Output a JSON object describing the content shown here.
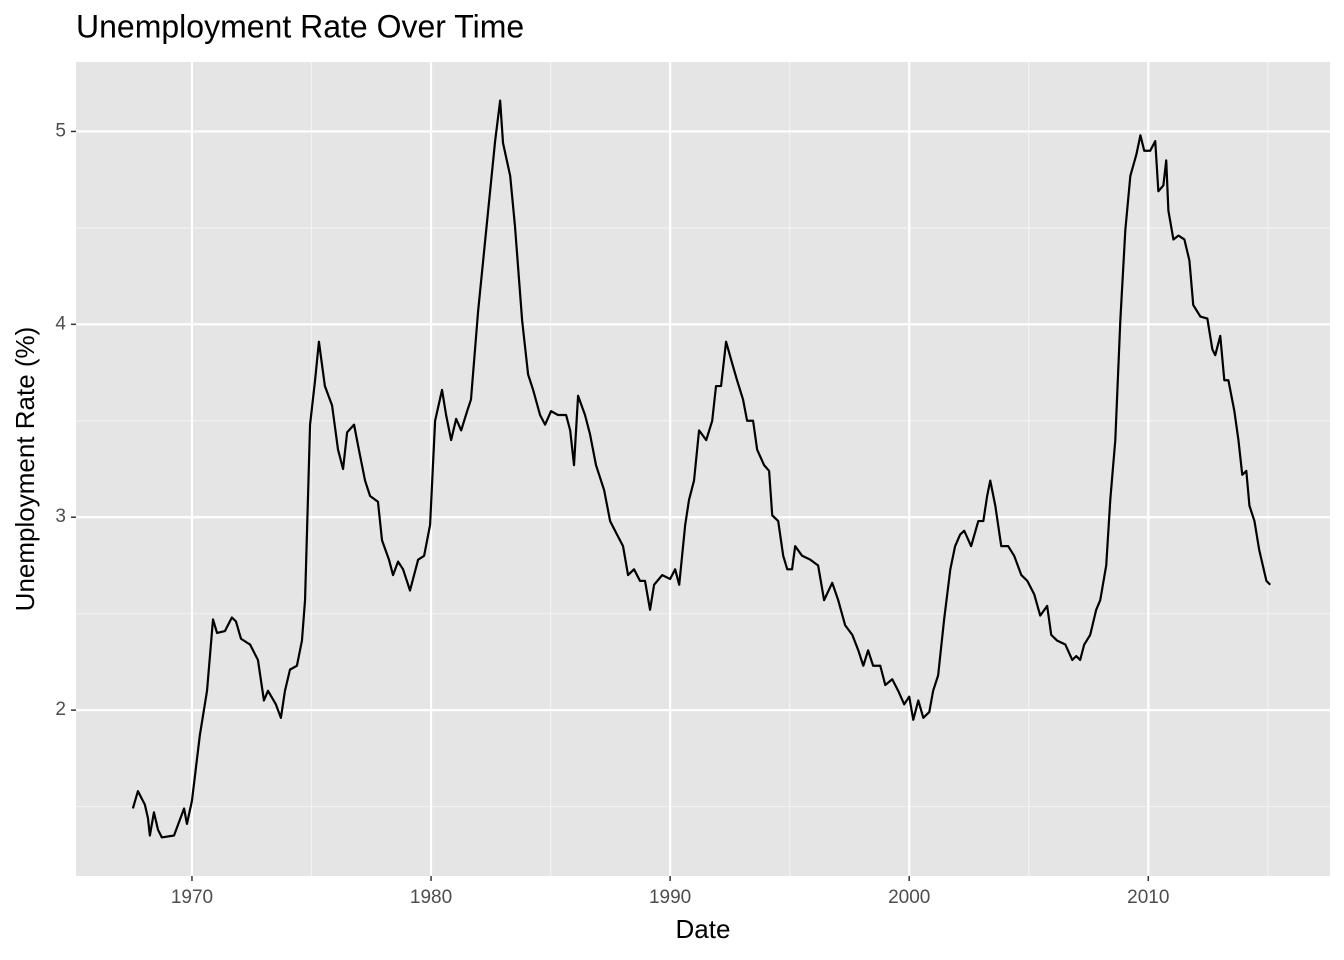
{
  "chart_data": {
    "type": "line",
    "title": "Unemployment Rate Over Time",
    "x_label": "Date",
    "y_label": "Unemployment Rate (%)",
    "color": "#000000",
    "grid": true,
    "background": "#e5e5e5",
    "xlim": [
      1965.15,
      2017.6
    ],
    "xticks": [
      1970,
      1980,
      1990,
      2000,
      2010
    ],
    "xminorticks": [
      1975,
      1985,
      1995,
      2005,
      2015
    ],
    "ylim": [
      1.14,
      5.36
    ],
    "yticks": [
      2,
      3,
      4,
      5
    ],
    "yminorticks": [
      1.5,
      2.5,
      3.5,
      4.5
    ],
    "x": [
      1967.53,
      1967.74,
      1968.03,
      1968.16,
      1968.24,
      1968.41,
      1968.58,
      1968.74,
      1969.25,
      1969.67,
      1969.79,
      1970.0,
      1970.33,
      1970.63,
      1970.88,
      1971.05,
      1971.38,
      1971.67,
      1971.84,
      1972.05,
      1972.43,
      1972.76,
      1973.01,
      1973.18,
      1973.51,
      1973.72,
      1973.89,
      1974.1,
      1974.39,
      1974.6,
      1974.73,
      1974.94,
      1975.15,
      1975.31,
      1975.56,
      1975.86,
      1976.11,
      1976.32,
      1976.49,
      1976.78,
      1976.95,
      1977.24,
      1977.45,
      1977.78,
      1977.95,
      1978.24,
      1978.41,
      1978.62,
      1978.83,
      1979.12,
      1979.46,
      1979.71,
      1979.96,
      1980.17,
      1980.46,
      1980.63,
      1980.84,
      1981.05,
      1981.26,
      1981.51,
      1981.67,
      1981.97,
      1982.22,
      1982.47,
      1982.68,
      1982.89,
      1983.01,
      1983.31,
      1983.51,
      1983.81,
      1984.06,
      1984.27,
      1984.56,
      1984.77,
      1985.02,
      1985.31,
      1985.65,
      1985.82,
      1985.98,
      1986.15,
      1986.44,
      1986.65,
      1986.9,
      1987.24,
      1987.49,
      1987.78,
      1988.03,
      1988.24,
      1988.49,
      1988.74,
      1988.95,
      1989.16,
      1989.33,
      1989.67,
      1990.0,
      1990.21,
      1990.38,
      1990.63,
      1990.79,
      1991.0,
      1991.21,
      1991.51,
      1991.76,
      1991.92,
      1992.13,
      1992.34,
      1992.59,
      1992.8,
      1993.05,
      1993.22,
      1993.47,
      1993.64,
      1993.93,
      1994.14,
      1994.27,
      1994.52,
      1994.73,
      1994.9,
      1995.1,
      1995.23,
      1995.52,
      1995.86,
      1996.19,
      1996.44,
      1996.78,
      1997.03,
      1997.32,
      1997.62,
      1997.87,
      1998.08,
      1998.28,
      1998.49,
      1998.79,
      1999.0,
      1999.29,
      1999.54,
      1999.79,
      2000.0,
      2000.17,
      2000.38,
      2000.59,
      2000.84,
      2001.0,
      2001.21,
      2001.46,
      2001.72,
      2001.92,
      2002.13,
      2002.3,
      2002.59,
      2002.89,
      2003.1,
      2003.26,
      2003.39,
      2003.6,
      2003.85,
      2004.14,
      2004.39,
      2004.69,
      2004.94,
      2005.23,
      2005.48,
      2005.77,
      2005.94,
      2006.19,
      2006.53,
      2006.82,
      2006.99,
      2007.15,
      2007.32,
      2007.57,
      2007.82,
      2007.99,
      2008.24,
      2008.41,
      2008.62,
      2008.83,
      2009.04,
      2009.25,
      2009.5,
      2009.67,
      2009.83,
      2010.08,
      2010.29,
      2010.42,
      2010.63,
      2010.75,
      2010.84,
      2011.05,
      2011.26,
      2011.51,
      2011.72,
      2011.88,
      2012.18,
      2012.47,
      2012.68,
      2012.8,
      2013.01,
      2013.18,
      2013.35,
      2013.6,
      2013.77,
      2013.93,
      2014.1,
      2014.23,
      2014.44,
      2014.64,
      2014.94,
      2015.1
    ],
    "values": [
      1.49,
      1.58,
      1.51,
      1.44,
      1.35,
      1.47,
      1.38,
      1.34,
      1.35,
      1.49,
      1.41,
      1.53,
      1.87,
      2.1,
      2.47,
      2.4,
      2.41,
      2.48,
      2.46,
      2.37,
      2.34,
      2.26,
      2.05,
      2.1,
      2.03,
      1.96,
      2.1,
      2.21,
      2.23,
      2.36,
      2.57,
      3.48,
      3.71,
      3.91,
      3.68,
      3.58,
      3.35,
      3.25,
      3.44,
      3.48,
      3.37,
      3.19,
      3.11,
      3.08,
      2.88,
      2.78,
      2.7,
      2.77,
      2.73,
      2.62,
      2.78,
      2.8,
      2.96,
      3.5,
      3.66,
      3.53,
      3.4,
      3.51,
      3.45,
      3.55,
      3.61,
      4.07,
      4.38,
      4.69,
      4.95,
      5.16,
      4.94,
      4.77,
      4.51,
      4.02,
      3.74,
      3.66,
      3.53,
      3.48,
      3.55,
      3.53,
      3.53,
      3.45,
      3.27,
      3.63,
      3.53,
      3.43,
      3.27,
      3.14,
      2.98,
      2.91,
      2.85,
      2.7,
      2.73,
      2.67,
      2.67,
      2.52,
      2.65,
      2.7,
      2.68,
      2.73,
      2.65,
      2.96,
      3.09,
      3.19,
      3.45,
      3.4,
      3.5,
      3.68,
      3.68,
      3.91,
      3.8,
      3.71,
      3.61,
      3.5,
      3.5,
      3.35,
      3.27,
      3.24,
      3.01,
      2.98,
      2.8,
      2.73,
      2.73,
      2.85,
      2.8,
      2.78,
      2.75,
      2.57,
      2.66,
      2.57,
      2.44,
      2.39,
      2.31,
      2.23,
      2.31,
      2.23,
      2.23,
      2.13,
      2.16,
      2.1,
      2.03,
      2.07,
      1.95,
      2.05,
      1.96,
      1.99,
      2.1,
      2.18,
      2.47,
      2.73,
      2.85,
      2.91,
      2.93,
      2.85,
      2.98,
      2.98,
      3.11,
      3.19,
      3.06,
      2.85,
      2.85,
      2.8,
      2.7,
      2.67,
      2.6,
      2.49,
      2.54,
      2.39,
      2.36,
      2.34,
      2.26,
      2.28,
      2.26,
      2.34,
      2.39,
      2.52,
      2.57,
      2.75,
      3.09,
      3.4,
      4.02,
      4.49,
      4.77,
      4.88,
      4.98,
      4.9,
      4.9,
      4.95,
      4.69,
      4.72,
      4.85,
      4.59,
      4.44,
      4.46,
      4.44,
      4.33,
      4.1,
      4.04,
      4.03,
      3.87,
      3.84,
      3.94,
      3.71,
      3.71,
      3.55,
      3.4,
      3.22,
      3.24,
      3.06,
      2.98,
      2.83,
      2.67,
      2.65
    ]
  }
}
